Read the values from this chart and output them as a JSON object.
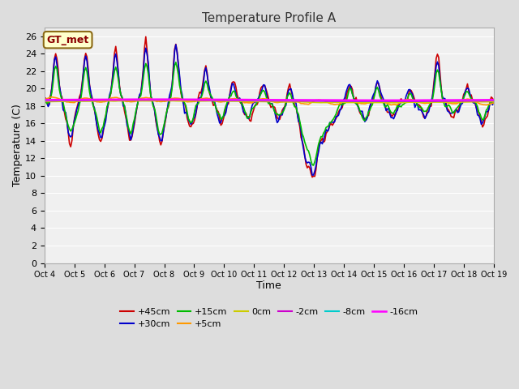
{
  "title": "Temperature Profile A",
  "xlabel": "Time",
  "ylabel": "Temperature (C)",
  "ylim": [
    0,
    27
  ],
  "yticks": [
    0,
    2,
    4,
    6,
    8,
    10,
    12,
    14,
    16,
    18,
    20,
    22,
    24,
    26
  ],
  "xtick_labels": [
    "Oct 4",
    "Oct 5",
    "Oct 6",
    "Oct 7",
    "Oct 8",
    "Oct 9",
    "Oct 10",
    "Oct 11",
    "Oct 12",
    "Oct 13",
    "Oct 14",
    "Oct 15",
    "Oct 16",
    "Oct 17",
    "Oct 18",
    "Oct 19"
  ],
  "series": {
    "+45cm": {
      "color": "#cc0000",
      "lw": 1.2
    },
    "+30cm": {
      "color": "#0000cc",
      "lw": 1.2
    },
    "+15cm": {
      "color": "#00bb00",
      "lw": 1.2
    },
    "+5cm": {
      "color": "#ff9900",
      "lw": 1.2
    },
    "0cm": {
      "color": "#cccc00",
      "lw": 1.2
    },
    "-2cm": {
      "color": "#cc00cc",
      "lw": 1.2
    },
    "-8cm": {
      "color": "#00cccc",
      "lw": 1.2
    },
    "-16cm": {
      "color": "#ff00ff",
      "lw": 1.8
    }
  },
  "annotation_text": "GT_met",
  "bg_color": "#dddddd",
  "plot_bg": "#f0f0f0"
}
